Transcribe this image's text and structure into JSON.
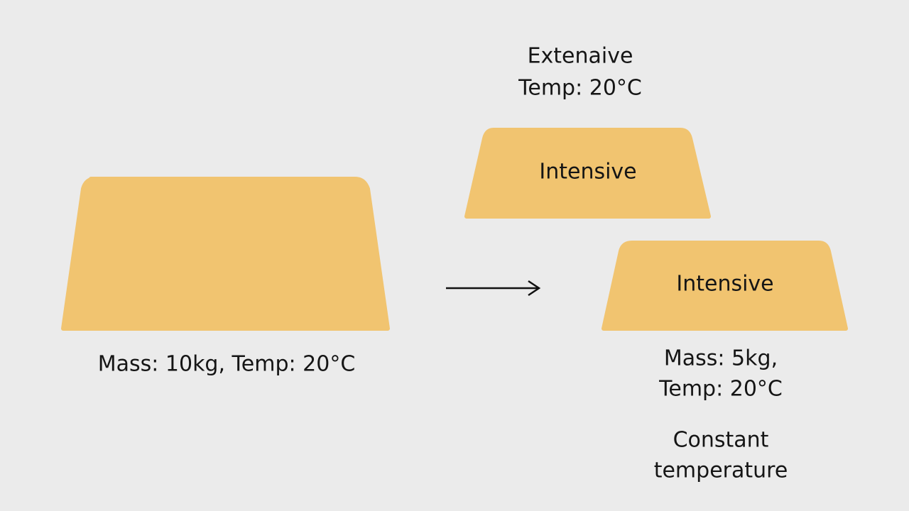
{
  "top_block": {
    "caption": [
      "Extenaive",
      "Temp: 20°C"
    ],
    "label": "Intensive"
  },
  "left_block": {
    "label": "Mass: 10kg, Temp: 20°C"
  },
  "bottom_block": {
    "label": "Intensive",
    "caption": [
      "Mass: 5kg,",
      "Temp: 20°C"
    ]
  },
  "note": [
    "Constant",
    "temperature"
  ]
}
